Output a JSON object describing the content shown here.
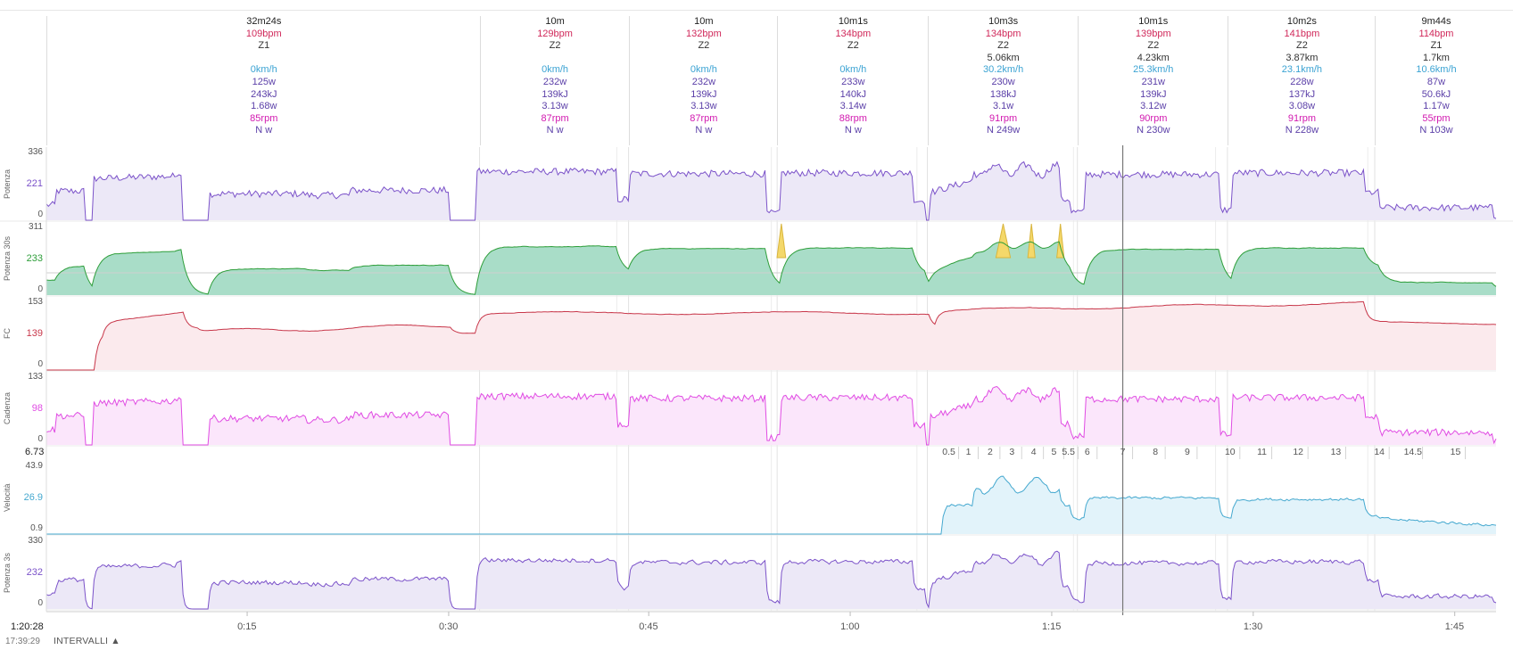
{
  "colors": {
    "power": "#7b52c9",
    "power_fill": "#ece8f7",
    "power30_line": "#2e9e3a",
    "power30_fill": "#a9ddc8",
    "power30_yellow": "#f4d86a",
    "hr": "#c8374a",
    "hr_fill": "#fbeaed",
    "cadence": "#e04be3",
    "cadence_fill": "#fbe6fb",
    "speed": "#44a8cf",
    "speed_fill": "#e2f3fa",
    "bpm": "#d0285a",
    "speed_text": "#3ba3d3",
    "watt_text": "#5b3fa8",
    "rpm_text": "#d21ab0",
    "grid": "#e2e2e2",
    "cursor": "#777777"
  },
  "intervals": [
    {
      "lines": [
        "32m24s",
        "109bpm",
        "Z1",
        "",
        "0km/h",
        "125w",
        "243kJ",
        "1.68w",
        "85rpm",
        "N w"
      ]
    },
    {
      "lines": [
        "10m",
        "129bpm",
        "Z2",
        "",
        "0km/h",
        "232w",
        "139kJ",
        "3.13w",
        "87rpm",
        "N w"
      ]
    },
    {
      "lines": [
        "10m",
        "132bpm",
        "Z2",
        "",
        "0km/h",
        "232w",
        "139kJ",
        "3.13w",
        "87rpm",
        "N w"
      ]
    },
    {
      "lines": [
        "10m1s",
        "134bpm",
        "Z2",
        "",
        "0km/h",
        "233w",
        "140kJ",
        "3.14w",
        "88rpm",
        "N w"
      ]
    },
    {
      "lines": [
        "10m3s",
        "134bpm",
        "Z2",
        "5.06km",
        "30.2km/h",
        "230w",
        "138kJ",
        "3.1w",
        "91rpm",
        "N 249w"
      ]
    },
    {
      "lines": [
        "10m1s",
        "139bpm",
        "Z2",
        "4.23km",
        "25.3km/h",
        "231w",
        "139kJ",
        "3.12w",
        "90rpm",
        "N 230w"
      ]
    },
    {
      "lines": [
        "10m2s",
        "141bpm",
        "Z2",
        "3.87km",
        "23.1km/h",
        "228w",
        "137kJ",
        "3.08w",
        "91rpm",
        "N 228w"
      ]
    },
    {
      "lines": [
        "9m44s",
        "114bpm",
        "Z1",
        "1.7km",
        "10.6km/h",
        "87w",
        "50.6kJ",
        "1.17w",
        "55rpm",
        "N 103w"
      ]
    }
  ],
  "panels": [
    {
      "key": "power",
      "label": "Potenza",
      "ticks": {
        "top": "336",
        "mid": "221",
        "bottom": "0"
      }
    },
    {
      "key": "power30",
      "label": "Potenza 30s",
      "ticks": {
        "top": "311",
        "mid": "233",
        "bottom": "0"
      }
    },
    {
      "key": "hr",
      "label": "FC",
      "ticks": {
        "top": "153",
        "mid": "139",
        "bottom": "0"
      }
    },
    {
      "key": "cadence",
      "label": "Cadenza",
      "ticks": {
        "top": "133",
        "mid": "98",
        "bottom": "0"
      }
    },
    {
      "key": "speed",
      "label": "Velocità",
      "ticks": {
        "top": "43.9",
        "mid": "26.9",
        "bottom": "0.9"
      }
    },
    {
      "key": "power3",
      "label": "Potenza 3s",
      "ticks": {
        "top": "330",
        "mid": "232",
        "bottom": "0"
      }
    }
  ],
  "speed_max_label": "6.73",
  "interval_markers": [
    "0.5",
    "1",
    "2",
    "3",
    "4",
    "5",
    "5.5",
    "6",
    "7",
    "8",
    "9",
    "10",
    "11",
    "12",
    "13",
    "14",
    "14.5",
    "15"
  ],
  "x_labels": [
    "0:15",
    "0:30",
    "0:45",
    "1:00",
    "1:15",
    "1:30",
    "1:45"
  ],
  "footer": {
    "time": "1:20:28",
    "clock": "17:39:29",
    "button": "INTERVALLI ▲"
  }
}
